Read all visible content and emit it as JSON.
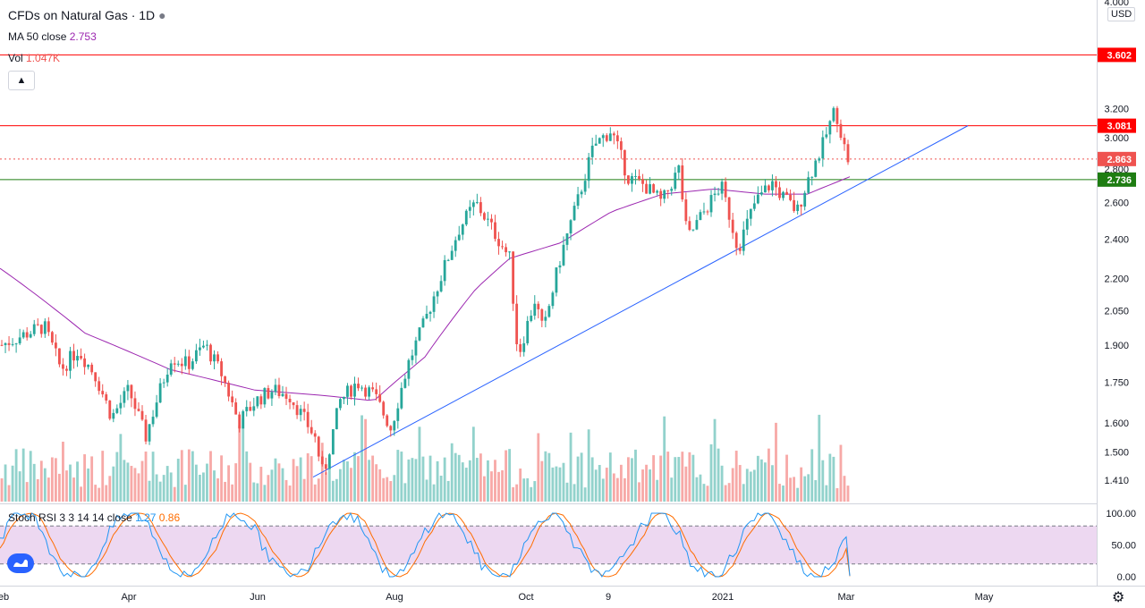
{
  "header": {
    "symbol_title": "CFDs on Natural Gas · 1D",
    "ma_label": "MA 50 close",
    "ma_value": "2.753",
    "vol_label": "Vol",
    "vol_value": "1.047K",
    "collapse_icon": "chevron-up-icon",
    "stoch_label": "Stoch RSI 3 3 14 14 close",
    "stoch_k": "1.27",
    "stoch_d": "0.86"
  },
  "price_axis": {
    "currency": "USD",
    "scale": "log",
    "ticks": [
      {
        "label": "4.000",
        "value": 4.0
      },
      {
        "label": "3.200",
        "value": 3.2
      },
      {
        "label": "3.000",
        "value": 3.0
      },
      {
        "label": "2.800",
        "value": 2.8
      },
      {
        "label": "2.600",
        "value": 2.6
      },
      {
        "label": "2.400",
        "value": 2.4
      },
      {
        "label": "2.200",
        "value": 2.2
      },
      {
        "label": "2.050",
        "value": 2.05
      },
      {
        "label": "1.900",
        "value": 1.9
      },
      {
        "label": "1.750",
        "value": 1.75
      },
      {
        "label": "1.600",
        "value": 1.6
      },
      {
        "label": "1.500",
        "value": 1.5
      },
      {
        "label": "1.410",
        "value": 1.41
      }
    ],
    "badges": [
      {
        "label": "3.602",
        "value": 3.602,
        "color": "#ff0000"
      },
      {
        "label": "3.081",
        "value": 3.081,
        "color": "#ff0000"
      },
      {
        "label": "2.863",
        "value": 2.863,
        "color": "#ef5350"
      },
      {
        "label": "2.736",
        "value": 2.736,
        "color": "#1e7d12"
      }
    ]
  },
  "stoch_axis": {
    "ticks": [
      {
        "label": "100.00",
        "value": 100
      },
      {
        "label": "50.00",
        "value": 50
      },
      {
        "label": "0.00",
        "value": 0
      }
    ],
    "upper_band": 80,
    "lower_band": 20,
    "band_color": "#e1bee7"
  },
  "time_axis": {
    "labels": [
      "eb",
      "Apr",
      "Jun",
      "Aug",
      "Oct",
      "9",
      "2021",
      "Mar",
      "May"
    ]
  },
  "colors": {
    "up": "#26a69a",
    "down": "#ef5350",
    "ma": "#9c27b0",
    "trendline": "#2962ff",
    "resistance": "#ff0000",
    "support": "#1e7d12",
    "stoch_k": "#2196f3",
    "stoch_d": "#ff6d00"
  },
  "chart_data": {
    "type": "candlestick",
    "title": "CFDs on Natural Gas · 1D",
    "y_scale": "log",
    "ylim": [
      1.38,
      4.0
    ],
    "last_price": 2.863,
    "horizontal_lines": [
      {
        "value": 3.602,
        "color": "#ff0000"
      },
      {
        "value": 3.081,
        "color": "#ff0000"
      },
      {
        "value": 2.736,
        "color": "#1e7d12"
      },
      {
        "value": 2.863,
        "style": "dotted",
        "color": "#ef5350"
      }
    ],
    "trendline": {
      "from": {
        "bar": 0.0,
        "price": 1.42
      },
      "to": {
        "bar": 1.0,
        "price": 3.081
      }
    },
    "price_path": [
      [
        0,
        1.9
      ],
      [
        0.03,
        1.95
      ],
      [
        0.05,
        1.98
      ],
      [
        0.07,
        1.8
      ],
      [
        0.09,
        1.88
      ],
      [
        0.11,
        1.78
      ],
      [
        0.13,
        1.62
      ],
      [
        0.15,
        1.72
      ],
      [
        0.17,
        1.55
      ],
      [
        0.2,
        1.85
      ],
      [
        0.22,
        1.82
      ],
      [
        0.24,
        1.9
      ],
      [
        0.26,
        1.78
      ],
      [
        0.28,
        1.6
      ],
      [
        0.3,
        1.68
      ],
      [
        0.32,
        1.72
      ],
      [
        0.34,
        1.7
      ],
      [
        0.36,
        1.6
      ],
      [
        0.37,
        1.55
      ],
      [
        0.38,
        1.42
      ],
      [
        0.4,
        1.68
      ],
      [
        0.42,
        1.75
      ],
      [
        0.44,
        1.7
      ],
      [
        0.46,
        1.58
      ],
      [
        0.48,
        1.82
      ],
      [
        0.5,
        2.0
      ],
      [
        0.52,
        2.22
      ],
      [
        0.54,
        2.45
      ],
      [
        0.56,
        2.6
      ],
      [
        0.58,
        2.45
      ],
      [
        0.6,
        2.3
      ],
      [
        0.61,
        1.85
      ],
      [
        0.63,
        2.1
      ],
      [
        0.64,
        1.95
      ],
      [
        0.66,
        2.3
      ],
      [
        0.68,
        2.6
      ],
      [
        0.7,
        2.95
      ],
      [
        0.72,
        3.05
      ],
      [
        0.74,
        2.75
      ],
      [
        0.76,
        2.7
      ],
      [
        0.78,
        2.6
      ],
      [
        0.8,
        2.8
      ],
      [
        0.81,
        2.4
      ],
      [
        0.83,
        2.55
      ],
      [
        0.85,
        2.7
      ],
      [
        0.87,
        2.35
      ],
      [
        0.89,
        2.6
      ],
      [
        0.91,
        2.72
      ],
      [
        0.92,
        2.65
      ],
      [
        0.94,
        2.55
      ],
      [
        0.95,
        2.7
      ],
      [
        0.97,
        2.95
      ],
      [
        0.985,
        3.2
      ],
      [
        0.995,
        2.95
      ],
      [
        1.0,
        2.863
      ]
    ],
    "ma50": [
      [
        0,
        2.25
      ],
      [
        0.1,
        1.95
      ],
      [
        0.2,
        1.8
      ],
      [
        0.3,
        1.72
      ],
      [
        0.38,
        1.7
      ],
      [
        0.44,
        1.68
      ],
      [
        0.5,
        1.85
      ],
      [
        0.56,
        2.15
      ],
      [
        0.6,
        2.3
      ],
      [
        0.66,
        2.38
      ],
      [
        0.72,
        2.55
      ],
      [
        0.78,
        2.65
      ],
      [
        0.84,
        2.68
      ],
      [
        0.9,
        2.65
      ],
      [
        0.95,
        2.65
      ],
      [
        1.0,
        2.753
      ]
    ],
    "stoch_rsi": {
      "k_last": 1.27,
      "d_last": 0.86,
      "upper": 80,
      "lower": 20
    }
  }
}
